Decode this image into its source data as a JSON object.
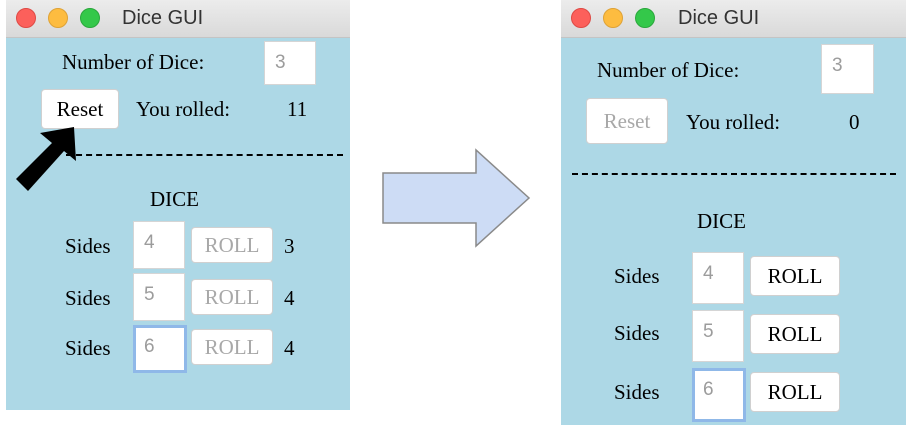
{
  "left_window": {
    "title": "Dice GUI",
    "number_of_dice_label": "Number of Dice:",
    "number_of_dice_value": "3",
    "reset_label": "Reset",
    "you_rolled_label": "You rolled:",
    "you_rolled_value": "11",
    "separator": "------------------------------",
    "dice_header": "DICE",
    "dice": [
      {
        "sides_label": "Sides",
        "sides_value": "4",
        "roll_label": "ROLL",
        "result": "3"
      },
      {
        "sides_label": "Sides",
        "sides_value": "5",
        "roll_label": "ROLL",
        "result": "4"
      },
      {
        "sides_label": "Sides",
        "sides_value": "6",
        "roll_label": "ROLL",
        "result": "4"
      }
    ]
  },
  "right_window": {
    "title": "Dice GUI",
    "number_of_dice_label": "Number of Dice:",
    "number_of_dice_value": "3",
    "reset_label": "Reset",
    "you_rolled_label": "You rolled:",
    "you_rolled_value": "0",
    "separator": "------------------------------",
    "dice_header": "DICE",
    "dice": [
      {
        "sides_label": "Sides",
        "sides_value": "4",
        "roll_label": "ROLL"
      },
      {
        "sides_label": "Sides",
        "sides_value": "5",
        "roll_label": "ROLL"
      },
      {
        "sides_label": "Sides",
        "sides_value": "6",
        "roll_label": "ROLL"
      }
    ]
  },
  "icons": {
    "cursor": "arrow-cursor-icon",
    "transition": "right-arrow-icon"
  },
  "colors": {
    "window_background": "#add8e6",
    "title_bar": "#e3e3e3",
    "close": "#fc605b",
    "minimize": "#fdbc40",
    "zoom": "#34c84a",
    "transition_arrow_fill": "#cddcf5",
    "focus_ring": "#8fb8e8"
  }
}
